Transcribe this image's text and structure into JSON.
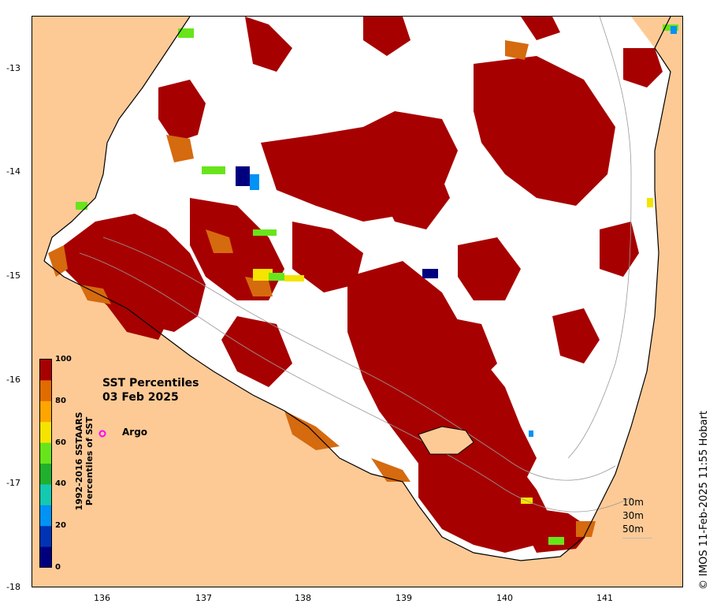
{
  "title": {
    "line1": "SST Percentiles",
    "line2": "03 Feb 2025"
  },
  "legend": {
    "argo_label": "Argo",
    "argo_color": "#ff00ff"
  },
  "colorbar": {
    "label_line1": "1992-2016 SSTAARS",
    "label_line2": "Percentiles of SST",
    "ticks": [
      "100",
      "80",
      "60",
      "40",
      "20",
      "0"
    ],
    "colors": [
      "#00007f",
      "#0034b5",
      "#0092f4",
      "#13c9b0",
      "#20b02d",
      "#67e51a",
      "#f5e400",
      "#ffa500",
      "#e06b00",
      "#a70000"
    ]
  },
  "axes": {
    "x_ticks": [
      "136",
      "137",
      "138",
      "139",
      "140",
      "141"
    ],
    "y_ticks": [
      "-13",
      "-14",
      "-15",
      "-16",
      "-17",
      "-18"
    ]
  },
  "depth_legend": [
    "10m",
    "30m",
    "50m"
  ],
  "credit": "© IMOS 11-Feb-2025 11:55 Hobart",
  "colors": {
    "land": "#fdca96",
    "hot": "#a70000",
    "warm": "#d56a0f",
    "ocean": "#ffffff"
  }
}
